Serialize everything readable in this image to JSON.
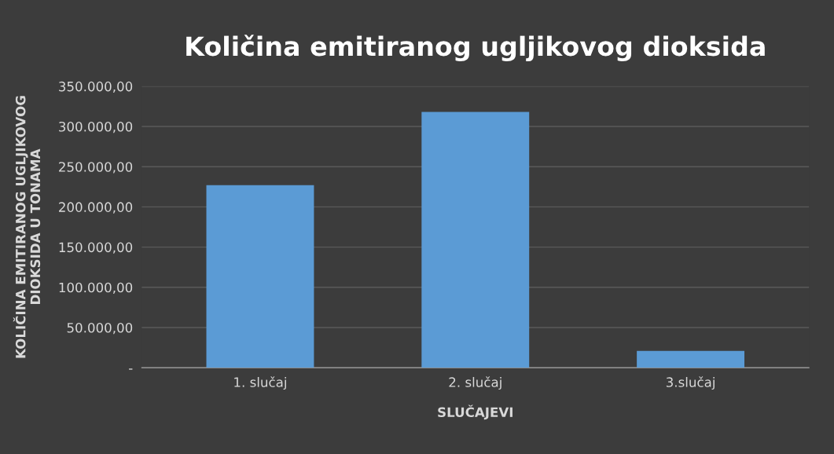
{
  "chart_data": {
    "type": "bar",
    "title": "Količina emitiranog ugljikovog dioksida",
    "xlabel": "SLUČAJEVI",
    "ylabel": "KOLIČINA EMITIRANOG UGLJIKOVOG\nDIOKSIDA U TONAMA",
    "categories": [
      "1. slučaj",
      "2. slučaj",
      "3.slučaj"
    ],
    "values": [
      227000,
      318000,
      21000
    ],
    "color": "#5b9bd5",
    "ylim": [
      0,
      350000
    ],
    "yticks": [
      {
        "value": 0,
        "label": "-"
      },
      {
        "value": 50000,
        "label": "50.000,00"
      },
      {
        "value": 100000,
        "label": "100.000,00"
      },
      {
        "value": 150000,
        "label": "150.000,00"
      },
      {
        "value": 200000,
        "label": "200.000,00"
      },
      {
        "value": 250000,
        "label": "250.000,00"
      },
      {
        "value": 300000,
        "label": "300.000,00"
      },
      {
        "value": 350000,
        "label": "350.000,00"
      }
    ],
    "grid": "y"
  }
}
